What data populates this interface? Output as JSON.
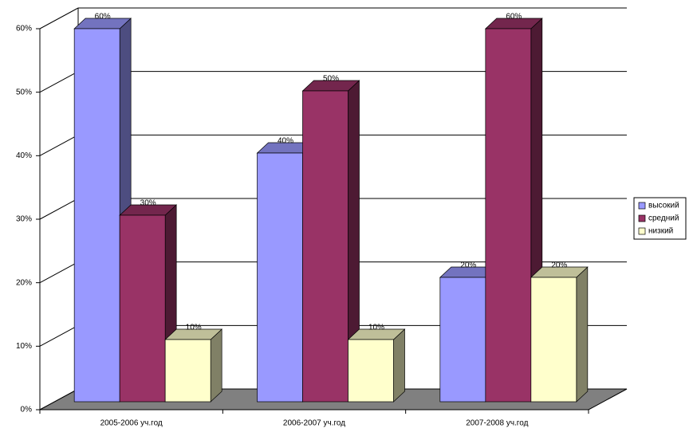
{
  "chart_data": {
    "type": "bar3d",
    "categories": [
      "2005-2006 уч.год",
      "2006-2007 уч.год",
      "2007-2008 уч.год"
    ],
    "series": [
      {
        "name": "высокий",
        "color": "#9999ff",
        "values": [
          60,
          40,
          20
        ],
        "value_labels": [
          "60%",
          "40%",
          "20%"
        ]
      },
      {
        "name": "средний",
        "color": "#993366",
        "values": [
          30,
          50,
          60
        ],
        "value_labels": [
          "30%",
          "50%",
          "60%"
        ]
      },
      {
        "name": "низкий",
        "color": "#ffffcc",
        "values": [
          10,
          10,
          20
        ],
        "value_labels": [
          "10%",
          "10%",
          "20%"
        ]
      }
    ],
    "ylim": [
      0,
      60
    ],
    "yticks": [
      {
        "value": 0,
        "label": "0%"
      },
      {
        "value": 10,
        "label": "10%"
      },
      {
        "value": 20,
        "label": "20%"
      },
      {
        "value": 30,
        "label": "30%"
      },
      {
        "value": 40,
        "label": "40%"
      },
      {
        "value": 50,
        "label": "50%"
      },
      {
        "value": 60,
        "label": "60%"
      }
    ],
    "grid": true,
    "legend": "right",
    "floor_color": "#808080"
  }
}
